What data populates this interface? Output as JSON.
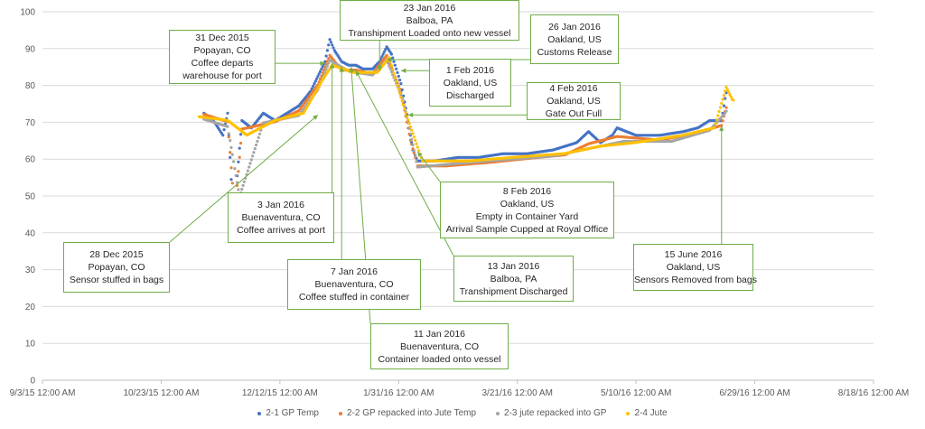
{
  "chart_data": {
    "type": "scatter",
    "title": "",
    "xlabel": "",
    "ylabel": "",
    "ylim": [
      0,
      100
    ],
    "y_ticks": [
      0,
      10,
      20,
      30,
      40,
      50,
      60,
      70,
      80,
      90,
      100
    ],
    "x_ticks": [
      "9/3/15 12:00 AM",
      "10/23/15 12:00 AM",
      "12/12/15 12:00 AM",
      "1/31/16 12:00 AM",
      "3/21/16 12:00 AM",
      "5/10/16 12:00 AM",
      "6/29/16 12:00 AM",
      "8/18/16 12:00 AM"
    ],
    "x_tick_dates": [
      "2015-09-03",
      "2015-10-23",
      "2015-12-12",
      "2016-01-31",
      "2016-03-21",
      "2016-05-10",
      "2016-06-29",
      "2016-08-18"
    ],
    "xlim": [
      "2015-09-03",
      "2016-08-18"
    ],
    "grid": "horizontal",
    "legend_position": "bottom",
    "series": [
      {
        "name": "2-1 GP Temp",
        "color": "#4472c4",
        "points": [
          [
            "2015-11-10",
            72
          ],
          [
            "2015-11-14",
            70
          ],
          [
            "2015-11-18",
            66
          ],
          [
            "2015-11-20",
            72
          ],
          [
            "2015-11-22",
            48
          ],
          [
            "2015-11-23",
            38
          ],
          [
            "2015-11-24",
            55
          ],
          [
            "2015-11-26",
            70
          ],
          [
            "2015-11-30",
            68
          ],
          [
            "2015-12-05",
            72
          ],
          [
            "2015-12-10",
            70
          ],
          [
            "2015-12-15",
            72
          ],
          [
            "2015-12-20",
            74
          ],
          [
            "2015-12-25",
            78
          ],
          [
            "2015-12-28",
            82
          ],
          [
            "2015-12-31",
            86
          ],
          [
            "2016-01-02",
            92
          ],
          [
            "2016-01-04",
            89
          ],
          [
            "2016-01-07",
            86
          ],
          [
            "2016-01-10",
            85
          ],
          [
            "2016-01-13",
            85
          ],
          [
            "2016-01-16",
            84
          ],
          [
            "2016-01-20",
            84
          ],
          [
            "2016-01-23",
            86
          ],
          [
            "2016-01-26",
            90
          ],
          [
            "2016-01-28",
            88
          ],
          [
            "2016-02-01",
            80
          ],
          [
            "2016-02-04",
            70
          ],
          [
            "2016-02-06",
            62
          ],
          [
            "2016-02-08",
            59
          ],
          [
            "2016-02-15",
            59
          ],
          [
            "2016-02-25",
            60
          ],
          [
            "2016-03-05",
            60
          ],
          [
            "2016-03-15",
            61
          ],
          [
            "2016-03-25",
            61
          ],
          [
            "2016-04-05",
            62
          ],
          [
            "2016-04-10",
            63
          ],
          [
            "2016-04-15",
            64
          ],
          [
            "2016-04-20",
            67
          ],
          [
            "2016-04-25",
            64
          ],
          [
            "2016-04-30",
            66
          ],
          [
            "2016-05-02",
            68
          ],
          [
            "2016-05-10",
            66
          ],
          [
            "2016-05-20",
            66
          ],
          [
            "2016-05-30",
            67
          ],
          [
            "2016-06-05",
            68
          ],
          [
            "2016-06-10",
            70
          ],
          [
            "2016-06-15",
            70
          ],
          [
            "2016-06-17",
            78
          ]
        ]
      },
      {
        "name": "2-2 GP repacked into Jute Temp",
        "color": "#ed7d31",
        "points": [
          [
            "2015-11-10",
            72
          ],
          [
            "2015-11-20",
            70
          ],
          [
            "2015-11-23",
            45
          ],
          [
            "2015-11-26",
            68
          ],
          [
            "2015-12-10",
            70
          ],
          [
            "2015-12-20",
            73
          ],
          [
            "2015-12-28",
            80
          ],
          [
            "2016-01-02",
            88
          ],
          [
            "2016-01-07",
            84
          ],
          [
            "2016-01-13",
            84
          ],
          [
            "2016-01-20",
            83
          ],
          [
            "2016-01-26",
            88
          ],
          [
            "2016-02-01",
            78
          ],
          [
            "2016-02-05",
            65
          ],
          [
            "2016-02-08",
            58
          ],
          [
            "2016-02-20",
            58
          ],
          [
            "2016-03-10",
            59
          ],
          [
            "2016-03-25",
            60
          ],
          [
            "2016-04-10",
            61
          ],
          [
            "2016-04-20",
            64
          ],
          [
            "2016-05-02",
            66
          ],
          [
            "2016-05-20",
            65
          ],
          [
            "2016-06-05",
            67
          ],
          [
            "2016-06-15",
            69
          ],
          [
            "2016-06-17",
            74
          ]
        ]
      },
      {
        "name": "2-3 jute repacked into GP",
        "color": "#a5a5a5",
        "points": [
          [
            "2015-11-10",
            71
          ],
          [
            "2015-11-20",
            69
          ],
          [
            "2015-11-25",
            50
          ],
          [
            "2015-12-05",
            70
          ],
          [
            "2015-12-20",
            72
          ],
          [
            "2015-12-28",
            79
          ],
          [
            "2016-01-02",
            87
          ],
          [
            "2016-01-10",
            84
          ],
          [
            "2016-01-20",
            83
          ],
          [
            "2016-01-26",
            87
          ],
          [
            "2016-02-02",
            76
          ],
          [
            "2016-02-08",
            58
          ],
          [
            "2016-02-25",
            59
          ],
          [
            "2016-03-15",
            60
          ],
          [
            "2016-04-05",
            61
          ],
          [
            "2016-04-20",
            63
          ],
          [
            "2016-05-05",
            65
          ],
          [
            "2016-05-25",
            65
          ],
          [
            "2016-06-10",
            68
          ],
          [
            "2016-06-17",
            73
          ]
        ]
      },
      {
        "name": "2-4 Jute",
        "color": "#ffc000",
        "points": [
          [
            "2015-11-08",
            72
          ],
          [
            "2015-11-20",
            71
          ],
          [
            "2015-11-28",
            67
          ],
          [
            "2015-12-10",
            71
          ],
          [
            "2015-12-22",
            73
          ],
          [
            "2015-12-30",
            82
          ],
          [
            "2016-01-03",
            86
          ],
          [
            "2016-01-12",
            84
          ],
          [
            "2016-01-22",
            84
          ],
          [
            "2016-01-27",
            88
          ],
          [
            "2016-02-03",
            73
          ],
          [
            "2016-02-10",
            60
          ],
          [
            "2016-03-01",
            60
          ],
          [
            "2016-03-20",
            61
          ],
          [
            "2016-04-10",
            62
          ],
          [
            "2016-04-25",
            64
          ],
          [
            "2016-05-10",
            65
          ],
          [
            "2016-05-30",
            67
          ],
          [
            "2016-06-12",
            69
          ],
          [
            "2016-06-17",
            80
          ],
          [
            "2016-06-20",
            76
          ]
        ]
      }
    ],
    "annotations": [
      {
        "lines": [
          "28 Dec 2015",
          "Popayan, CO",
          "Sensor stuffed in bags"
        ],
        "date": "2015-12-28",
        "value": 72
      },
      {
        "lines": [
          "31 Dec 2015",
          "Popayan, CO",
          "Coffee departs",
          "warehouse for port"
        ],
        "date": "2015-12-31",
        "value": 86
      },
      {
        "lines": [
          "3 Jan 2016",
          "Buenaventura, CO",
          "Coffee arrives at port"
        ],
        "date": "2016-01-03",
        "value": 86
      },
      {
        "lines": [
          "7 Jan 2016",
          "Buenaventura, CO",
          "Coffee stuffed in container"
        ],
        "date": "2016-01-07",
        "value": 85
      },
      {
        "lines": [
          "11 Jan 2016",
          "Buenaventura, CO",
          "Container loaded onto vessel"
        ],
        "date": "2016-01-11",
        "value": 85
      },
      {
        "lines": [
          "13 Jan 2016",
          "Balboa, PA",
          "Transhipment Discharged"
        ],
        "date": "2016-01-13",
        "value": 84
      },
      {
        "lines": [
          "23 Jan 2016",
          "Balboa, PA",
          "Transhipment Loaded onto new vessel"
        ],
        "date": "2016-01-23",
        "value": 84
      },
      {
        "lines": [
          "26 Jan 2016",
          "Oakland, US",
          "Customs Release"
        ],
        "date": "2016-01-26",
        "value": 87
      },
      {
        "lines": [
          "1 Feb 2016",
          "Oakland, US",
          "Discharged"
        ],
        "date": "2016-02-01",
        "value": 84
      },
      {
        "lines": [
          "4 Feb 2016",
          "Oakland, US",
          "Gate Out Full"
        ],
        "date": "2016-02-04",
        "value": 72
      },
      {
        "lines": [
          "8 Feb 2016",
          "Oakland, US",
          "Empty in Container Yard",
          "Arrival Sample Cupped at Royal Office"
        ],
        "date": "2016-02-08",
        "value": 62
      },
      {
        "lines": [
          "15 June 2016",
          "Oakland, US",
          "Sensors Removed from bags"
        ],
        "date": "2016-06-15",
        "value": 69
      }
    ]
  }
}
